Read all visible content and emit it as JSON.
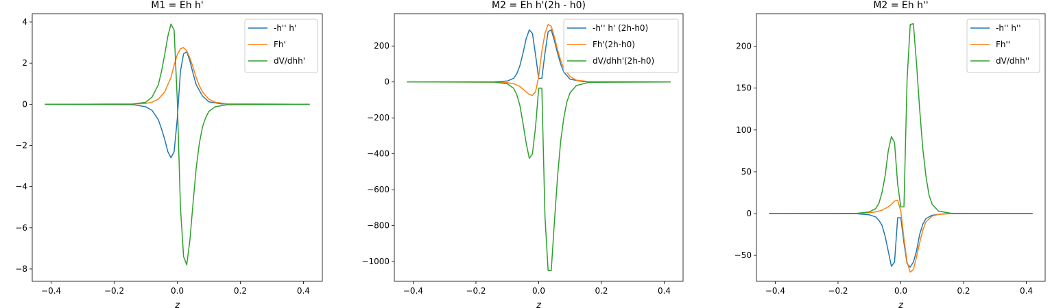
{
  "chart_data": [
    {
      "type": "line",
      "title": "M1 = Eh h'",
      "xlabel": "z",
      "xlim": [
        -0.46,
        0.46
      ],
      "ylim": [
        -8.6,
        4.4
      ],
      "xticks": [
        -0.4,
        -0.2,
        0.0,
        0.2,
        0.4
      ],
      "yticks": [
        -8,
        -6,
        -4,
        -2,
        0,
        2,
        4
      ],
      "legend_position": "top-right",
      "series": [
        {
          "name": "-h'' h'",
          "color": "#1f77b4",
          "x": [
            -0.42,
            -0.14,
            -0.1,
            -0.08,
            -0.06,
            -0.05,
            -0.04,
            -0.03,
            -0.02,
            -0.01,
            0.0,
            0.01,
            0.02,
            0.03,
            0.04,
            0.05,
            0.06,
            0.08,
            0.1,
            0.14,
            0.42
          ],
          "y": [
            0,
            -0.02,
            -0.12,
            -0.3,
            -0.75,
            -1.2,
            -1.7,
            -2.3,
            -2.6,
            -2.3,
            -0.7,
            1.6,
            2.45,
            2.55,
            2.1,
            1.5,
            0.95,
            0.4,
            0.12,
            0.02,
            0
          ]
        },
        {
          "name": "Fh'",
          "color": "#ff7f0e",
          "x": [
            -0.42,
            -0.14,
            -0.1,
            -0.08,
            -0.06,
            -0.04,
            -0.02,
            -0.01,
            0.0,
            0.01,
            0.02,
            0.03,
            0.04,
            0.05,
            0.06,
            0.07,
            0.08,
            0.1,
            0.12,
            0.16,
            0.42
          ],
          "y": [
            0,
            0.01,
            0.04,
            0.1,
            0.25,
            0.6,
            1.3,
            1.9,
            2.4,
            2.7,
            2.75,
            2.6,
            2.25,
            1.8,
            1.3,
            0.9,
            0.6,
            0.25,
            0.1,
            0.02,
            0
          ]
        },
        {
          "name": "dV/dhh'",
          "color": "#2ca02c",
          "x": [
            -0.42,
            -0.14,
            -0.1,
            -0.08,
            -0.06,
            -0.05,
            -0.04,
            -0.03,
            -0.02,
            -0.01,
            0.0,
            0.01,
            0.02,
            0.03,
            0.04,
            0.05,
            0.06,
            0.07,
            0.08,
            0.09,
            0.1,
            0.12,
            0.16,
            0.42
          ],
          "y": [
            0,
            0.01,
            0.1,
            0.35,
            0.95,
            1.6,
            2.4,
            3.3,
            3.9,
            3.6,
            0.2,
            -5.0,
            -7.4,
            -7.8,
            -6.6,
            -4.8,
            -3.1,
            -1.9,
            -1.1,
            -0.65,
            -0.35,
            -0.12,
            -0.02,
            0
          ]
        }
      ]
    },
    {
      "type": "line",
      "title": "M2 = Eh h'(2h - h0)",
      "xlabel": "z",
      "xlim": [
        -0.46,
        0.46
      ],
      "ylim": [
        -1110,
        380
      ],
      "xticks": [
        -0.4,
        -0.2,
        0.0,
        0.2,
        0.4
      ],
      "yticks": [
        -1000,
        -800,
        -600,
        -400,
        -200,
        0,
        200
      ],
      "legend_position": "top-right",
      "series": [
        {
          "name": "-h'' h' (2h-h0)",
          "color": "#1f77b4",
          "x": [
            -0.42,
            -0.14,
            -0.1,
            -0.08,
            -0.07,
            -0.06,
            -0.05,
            -0.04,
            -0.03,
            -0.02,
            -0.01,
            0.0,
            0.01,
            0.02,
            0.03,
            0.04,
            0.05,
            0.06,
            0.07,
            0.08,
            0.1,
            0.14,
            0.42
          ],
          "y": [
            0,
            1,
            5,
            20,
            45,
            90,
            160,
            240,
            290,
            270,
            150,
            20,
            20,
            160,
            280,
            290,
            230,
            160,
            100,
            55,
            15,
            2,
            0
          ]
        },
        {
          "name": "Fh'(2h-h0)",
          "color": "#ff7f0e",
          "x": [
            -0.42,
            -0.14,
            -0.1,
            -0.08,
            -0.06,
            -0.04,
            -0.03,
            -0.02,
            -0.01,
            0.0,
            0.01,
            0.02,
            0.03,
            0.04,
            0.05,
            0.06,
            0.07,
            0.08,
            0.1,
            0.12,
            0.16,
            0.42
          ],
          "y": [
            0,
            -1,
            -4,
            -10,
            -25,
            -55,
            -70,
            -75,
            -55,
            30,
            170,
            270,
            320,
            310,
            250,
            180,
            120,
            75,
            30,
            10,
            2,
            0
          ]
        },
        {
          "name": "dV/dhh'(2h-h0)",
          "color": "#2ca02c",
          "x": [
            -0.42,
            -0.14,
            -0.1,
            -0.08,
            -0.07,
            -0.06,
            -0.05,
            -0.04,
            -0.03,
            -0.02,
            -0.01,
            0.0,
            0.01,
            0.02,
            0.03,
            0.04,
            0.05,
            0.06,
            0.07,
            0.08,
            0.09,
            0.1,
            0.12,
            0.16,
            0.42
          ],
          "y": [
            0,
            -1,
            -10,
            -35,
            -70,
            -130,
            -230,
            -340,
            -425,
            -400,
            -250,
            -35,
            -35,
            -750,
            -1050,
            -1050,
            -780,
            -530,
            -330,
            -200,
            -110,
            -60,
            -20,
            -2,
            0
          ]
        }
      ]
    },
    {
      "type": "line",
      "title": "M2 = Eh h''",
      "xlabel": "z",
      "xlim": [
        -0.46,
        0.46
      ],
      "ylim": [
        -81,
        239
      ],
      "xticks": [
        -0.4,
        -0.2,
        0.0,
        0.2,
        0.4
      ],
      "yticks": [
        -50,
        0,
        50,
        100,
        150,
        200
      ],
      "legend_position": "top-right",
      "series": [
        {
          "name": "-h'' h''",
          "color": "#1f77b4",
          "x": [
            -0.42,
            -0.14,
            -0.1,
            -0.08,
            -0.07,
            -0.06,
            -0.05,
            -0.04,
            -0.03,
            -0.02,
            -0.01,
            0.0,
            0.01,
            0.02,
            0.03,
            0.04,
            0.05,
            0.06,
            0.07,
            0.08,
            0.1,
            0.14,
            0.42
          ],
          "y": [
            0,
            -0.2,
            -1.5,
            -4,
            -8,
            -14,
            -27,
            -45,
            -63,
            -58,
            -5,
            -5,
            -35,
            -60,
            -64,
            -58,
            -45,
            -25,
            -13,
            -6,
            -2,
            -0.2,
            0
          ]
        },
        {
          "name": "Fh''",
          "color": "#ff7f0e",
          "x": [
            -0.42,
            -0.14,
            -0.1,
            -0.08,
            -0.06,
            -0.04,
            -0.03,
            -0.02,
            -0.01,
            0.0,
            0.01,
            0.02,
            0.03,
            0.04,
            0.05,
            0.06,
            0.07,
            0.08,
            0.1,
            0.12,
            0.16,
            0.42
          ],
          "y": [
            0,
            0.2,
            1,
            2,
            4,
            8,
            11,
            15,
            16,
            3,
            -30,
            -58,
            -70,
            -67,
            -52,
            -35,
            -20,
            -10,
            -3,
            -1,
            -0.1,
            0
          ]
        },
        {
          "name": "dV/dhh''",
          "color": "#2ca02c",
          "x": [
            -0.42,
            -0.14,
            -0.1,
            -0.08,
            -0.07,
            -0.06,
            -0.05,
            -0.04,
            -0.03,
            -0.02,
            -0.01,
            0.0,
            0.01,
            0.02,
            0.03,
            0.04,
            0.05,
            0.06,
            0.07,
            0.08,
            0.09,
            0.1,
            0.12,
            0.16,
            0.42
          ],
          "y": [
            0,
            0.2,
            2,
            6,
            12,
            25,
            45,
            75,
            92,
            85,
            35,
            8,
            8,
            160,
            226,
            227,
            180,
            125,
            78,
            45,
            22,
            11,
            3,
            0.3,
            0
          ]
        }
      ]
    }
  ]
}
